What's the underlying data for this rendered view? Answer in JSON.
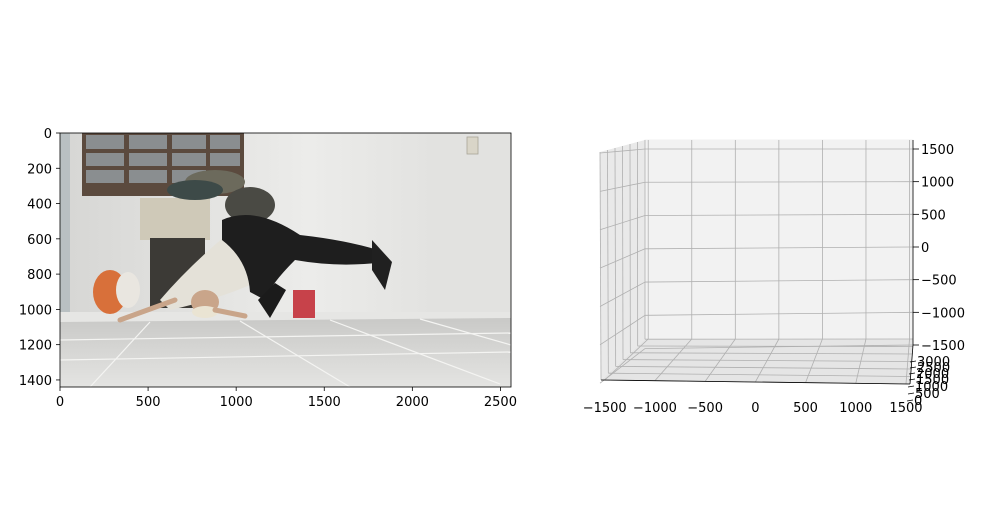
{
  "chart_data": [
    {
      "type": "image",
      "title": "",
      "xlabel": "",
      "ylabel": "",
      "xlim": [
        0,
        2560
      ],
      "ylim": [
        1440,
        0
      ],
      "x_ticks": [
        "0",
        "500",
        "1000",
        "1500",
        "2000",
        "2500"
      ],
      "y_ticks": [
        "0",
        "200",
        "400",
        "600",
        "800",
        "1000",
        "1200",
        "1400"
      ],
      "image_content": "video frame of a breakdancer in a freeze on a tiled floor in a white room"
    },
    {
      "type": "scatter3d",
      "title": "",
      "xlim": [
        -1500,
        1500
      ],
      "ylim": [
        0,
        3000
      ],
      "zlim": [
        -1500,
        1500
      ],
      "x_ticks": [
        "−1500",
        "−1000",
        "−500",
        "0",
        "500",
        "1000",
        "1500"
      ],
      "y_ticks": [
        "0",
        "500",
        "1000",
        "1500",
        "2000",
        "2500",
        "3000"
      ],
      "z_ticks": [
        "−1500",
        "−1000",
        "−500",
        "0",
        "500",
        "1000",
        "1500"
      ],
      "points": [],
      "grid": true,
      "pane_color": "#f2f2f2"
    }
  ]
}
